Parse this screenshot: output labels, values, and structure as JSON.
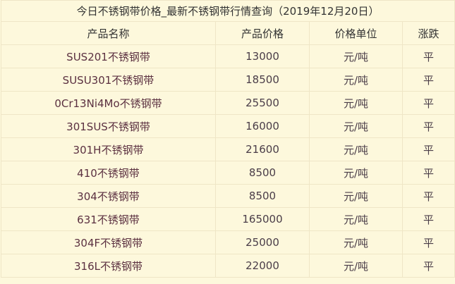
{
  "title": "今日不锈钢带价格_最新不锈钢带行情查询（2019年12月20日）",
  "headers": [
    "产品名称",
    "产品价格",
    "价格单位",
    "涨跌"
  ],
  "rows": [
    {
      "name": "SUS201不锈钢带",
      "price": "13000",
      "unit": "元/吨",
      "change": "平"
    },
    {
      "name": "SUSU301不锈钢带",
      "price": "18500",
      "unit": "元/吨",
      "change": "平"
    },
    {
      "name": "0Cr13Ni4Mo不锈钢带",
      "price": "25500",
      "unit": "元/吨",
      "change": "平"
    },
    {
      "name": "301SUS不锈钢带",
      "price": "16000",
      "unit": "元/吨",
      "change": "平"
    },
    {
      "name": "301H不锈钢带",
      "price": "21600",
      "unit": "元/吨",
      "change": "平"
    },
    {
      "name": "410不锈钢带",
      "price": "8500",
      "unit": "元/吨",
      "change": "平"
    },
    {
      "name": "304不锈钢带",
      "price": "8500",
      "unit": "元/吨",
      "change": "平"
    },
    {
      "name": "631不锈钢带",
      "price": "165000",
      "unit": "元/吨",
      "change": "平"
    },
    {
      "name": "304F不锈钢带",
      "price": "25000",
      "unit": "元/吨",
      "change": "平"
    },
    {
      "name": "316L不锈钢带",
      "price": "22000",
      "unit": "元/吨",
      "change": "平"
    }
  ],
  "colors": {
    "background": "#fdf8dc",
    "border": "#efe6c6",
    "text": "#4a3d48"
  }
}
